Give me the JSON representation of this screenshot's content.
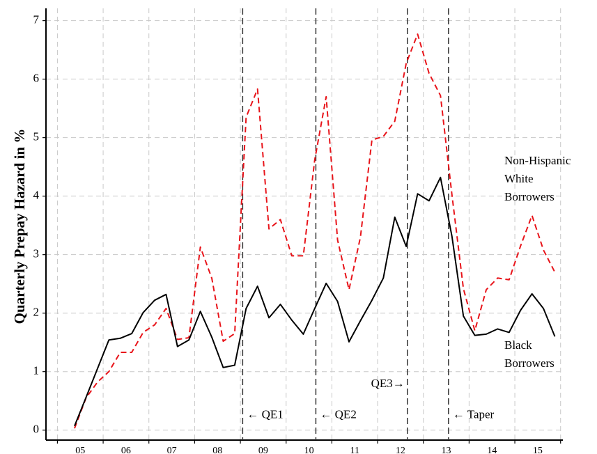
{
  "chart_data": {
    "type": "line",
    "ylabel": "Quarterly Prepay Hazard in %",
    "x": [
      2005.375,
      2005.625,
      2005.875,
      2006.125,
      2006.375,
      2006.625,
      2006.875,
      2007.125,
      2007.375,
      2007.625,
      2007.875,
      2008.125,
      2008.375,
      2008.625,
      2008.875,
      2009.125,
      2009.375,
      2009.625,
      2009.875,
      2010.125,
      2010.375,
      2010.625,
      2010.875,
      2011.125,
      2011.375,
      2011.625,
      2011.875,
      2012.125,
      2012.375,
      2012.625,
      2012.875,
      2013.125,
      2013.375,
      2013.625,
      2013.875,
      2014.125,
      2014.375,
      2014.625,
      2014.875,
      2015.125,
      2015.375,
      2015.625,
      2015.875
    ],
    "series": [
      {
        "name": "Non-Hispanic White Borrowers",
        "color": "#e8141a",
        "dash": true,
        "values": [
          0.03,
          0.55,
          0.82,
          1.0,
          1.33,
          1.33,
          1.67,
          1.8,
          2.08,
          1.55,
          1.58,
          3.13,
          2.6,
          1.52,
          1.65,
          5.35,
          5.83,
          3.44,
          3.6,
          2.98,
          2.98,
          4.62,
          5.7,
          3.25,
          2.4,
          3.3,
          4.96,
          5.02,
          5.28,
          6.27,
          6.77,
          6.1,
          5.72,
          4.02,
          2.42,
          1.7,
          2.4,
          2.6,
          2.57,
          3.15,
          3.67,
          3.08,
          2.7
        ]
      },
      {
        "name": "Black Borrowers",
        "color": "#000000",
        "dash": false,
        "values": [
          0.07,
          0.56,
          1.05,
          1.54,
          1.57,
          1.65,
          2.01,
          2.22,
          2.32,
          1.43,
          1.54,
          2.03,
          1.59,
          1.07,
          1.11,
          2.08,
          2.46,
          1.92,
          2.15,
          1.88,
          1.64,
          2.08,
          2.51,
          2.2,
          1.51,
          1.87,
          2.22,
          2.6,
          3.64,
          3.14,
          4.04,
          3.92,
          4.32,
          3.31,
          1.95,
          1.62,
          1.64,
          1.73,
          1.67,
          2.05,
          2.33,
          2.08,
          1.6
        ]
      }
    ],
    "events": [
      {
        "x": 2009.05,
        "label": "← QE1"
      },
      {
        "x": 2010.65,
        "label": "← QE2"
      },
      {
        "x": 2012.65,
        "label": "QE3→"
      },
      {
        "x": 2013.55,
        "label": "← Taper"
      }
    ],
    "xlim": [
      2004.75,
      2016.05
    ],
    "xticks": [
      {
        "value": 2005.5,
        "label": "05"
      },
      {
        "value": 2006.5,
        "label": "06"
      },
      {
        "value": 2007.5,
        "label": "07"
      },
      {
        "value": 2008.5,
        "label": "08"
      },
      {
        "value": 2009.5,
        "label": "09"
      },
      {
        "value": 2010.5,
        "label": "10"
      },
      {
        "value": 2011.5,
        "label": "11"
      },
      {
        "value": 2012.5,
        "label": "12"
      },
      {
        "value": 2013.5,
        "label": "13"
      },
      {
        "value": 2014.5,
        "label": "14"
      },
      {
        "value": 2015.5,
        "label": "15"
      }
    ],
    "xminorticks": [
      2005,
      2006,
      2007,
      2008,
      2009,
      2010,
      2011,
      2012,
      2013,
      2014,
      2015,
      2016
    ],
    "ylim": [
      -0.17,
      7.21
    ],
    "yticks": [
      0,
      1,
      2,
      3,
      4,
      5,
      6,
      7
    ],
    "grid": true
  }
}
